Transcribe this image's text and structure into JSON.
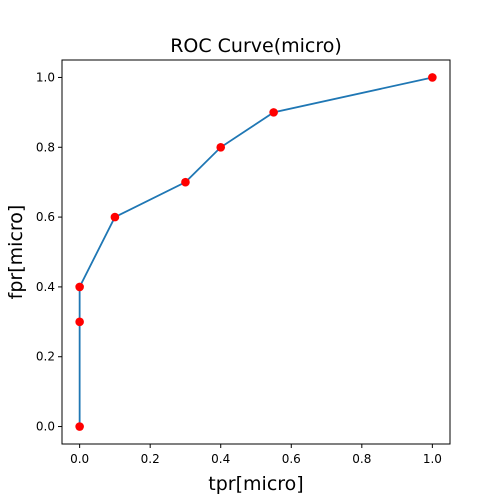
{
  "chart_data": {
    "type": "line",
    "title": "ROC Curve(micro)",
    "xlabel": "tpr[micro]",
    "ylabel": "fpr[micro]",
    "xlim": [
      -0.05,
      1.05
    ],
    "ylim": [
      -0.05,
      1.05
    ],
    "x_ticks": [
      0.0,
      0.2,
      0.4,
      0.6,
      0.8,
      1.0
    ],
    "y_ticks": [
      0.0,
      0.2,
      0.4,
      0.6,
      0.8,
      1.0
    ],
    "x_tick_labels": [
      "0.0",
      "0.2",
      "0.4",
      "0.6",
      "0.8",
      "1.0"
    ],
    "y_tick_labels": [
      "0.0",
      "0.2",
      "0.4",
      "0.6",
      "0.8",
      "1.0"
    ],
    "grid": false,
    "series": [
      {
        "x": [
          0.0,
          0.0,
          0.0,
          0.1,
          0.3,
          0.4,
          0.55,
          1.0
        ],
        "y": [
          0.0,
          0.3,
          0.4,
          0.6,
          0.7,
          0.8,
          0.9,
          1.0
        ],
        "line_color": "#1f77b4",
        "marker_color": "#ff0000"
      }
    ]
  }
}
